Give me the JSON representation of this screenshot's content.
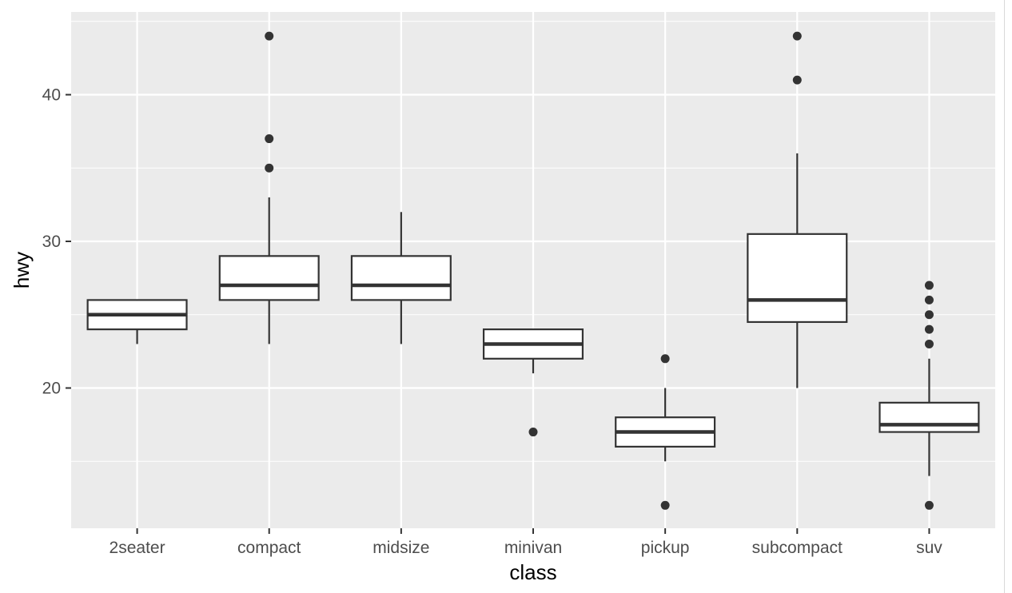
{
  "chart_data": {
    "type": "boxplot",
    "title": "",
    "xlabel": "class",
    "ylabel": "hwy",
    "ylim": [
      10.6,
      45.6
    ],
    "yticks": [
      20,
      30,
      40
    ],
    "ytick_labels": [
      "20",
      "30",
      "40"
    ],
    "y_minor_gridlines": [
      15,
      25,
      35,
      45
    ],
    "grid": true,
    "legend": "none",
    "colors": {
      "panel_background": "#ebebeb",
      "grid": "#ffffff",
      "box_fill": "#ffffff",
      "box_stroke": "#333333",
      "outlier": "#333333"
    },
    "categories": [
      "2seater",
      "compact",
      "midsize",
      "minivan",
      "pickup",
      "subcompact",
      "suv"
    ],
    "boxes": [
      {
        "category": "2seater",
        "whisker_low": 23,
        "q1": 24,
        "median": 25,
        "q3": 26,
        "whisker_high": 26,
        "outliers": []
      },
      {
        "category": "compact",
        "whisker_low": 23,
        "q1": 26,
        "median": 27,
        "q3": 29,
        "whisker_high": 33,
        "outliers": [
          35,
          37,
          44
        ]
      },
      {
        "category": "midsize",
        "whisker_low": 23,
        "q1": 26,
        "median": 27,
        "q3": 29,
        "whisker_high": 32,
        "outliers": []
      },
      {
        "category": "minivan",
        "whisker_low": 21,
        "q1": 22,
        "median": 23,
        "q3": 24,
        "whisker_high": 24,
        "outliers": [
          17
        ]
      },
      {
        "category": "pickup",
        "whisker_low": 15,
        "q1": 16,
        "median": 17,
        "q3": 18,
        "whisker_high": 20,
        "outliers": [
          12,
          22
        ]
      },
      {
        "category": "subcompact",
        "whisker_low": 20,
        "q1": 24.5,
        "median": 26,
        "q3": 30.5,
        "whisker_high": 36,
        "outliers": [
          41,
          44
        ]
      },
      {
        "category": "suv",
        "whisker_low": 14,
        "q1": 17,
        "median": 17.5,
        "q3": 19,
        "whisker_high": 22,
        "outliers": [
          12,
          23,
          24,
          25,
          26,
          27
        ]
      }
    ]
  }
}
